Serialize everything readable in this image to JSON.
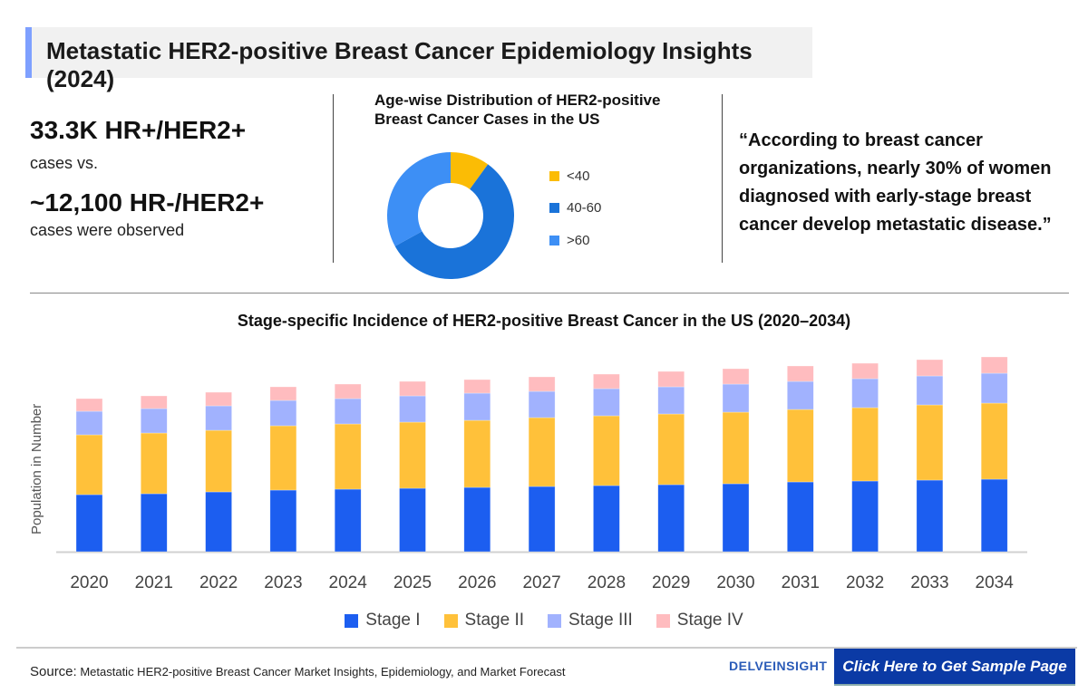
{
  "header": {
    "title": "Metastatic HER2-positive Breast Cancer Epidemiology Insights (2024)"
  },
  "stats": {
    "stat1": "33.3K HR+/HER2+",
    "stat1_sub": "cases vs.",
    "stat2": "~12,100 HR-/HER2+",
    "stat2_sub": "cases were observed"
  },
  "quote": "“According to breast cancer organizations, nearly 30% of women diagnosed with early-stage breast cancer develop metastatic disease.”",
  "footer": {
    "source_label": "Source:",
    "source_text": "Metastatic HER2-positive Breast Cancer Market Insights, Epidemiology, and Market Forecast",
    "logo": "DELVEINSIGHT",
    "cta": "Click Here to Get Sample Page"
  },
  "chart_data": [
    {
      "type": "pie",
      "donut": true,
      "title": "Age-wise Distribution of HER2-positive Breast Cancer Cases in the US",
      "categories": [
        "<40",
        "40-60",
        ">60"
      ],
      "values": [
        10,
        57,
        33
      ],
      "colors": [
        "#fbbc05",
        "#1a73d9",
        "#3d8ff5"
      ],
      "legend": "right"
    },
    {
      "type": "bar",
      "stacked": true,
      "title": "Stage-specific Incidence of HER2-positive Breast Cancer in the US (2020–2034)",
      "xlabel": "",
      "ylabel": "Population in Number",
      "grid": false,
      "legend": "bottom",
      "categories": [
        "2020",
        "2021",
        "2022",
        "2023",
        "2024",
        "2025",
        "2026",
        "2027",
        "2028",
        "2029",
        "2030",
        "2031",
        "2032",
        "2033",
        "2034"
      ],
      "series": [
        {
          "name": "Stage I",
          "color": "#1c5ef0",
          "values": [
            63,
            64,
            66,
            68,
            69,
            70,
            71,
            72,
            73,
            74,
            75,
            77,
            78,
            79,
            80
          ]
        },
        {
          "name": "Stage II",
          "color": "#ffc13a",
          "values": [
            66,
            67,
            68,
            71,
            72,
            73,
            74,
            76,
            77,
            78,
            79,
            80,
            81,
            83,
            84
          ]
        },
        {
          "name": "Stage III",
          "color": "#a1b2fe",
          "values": [
            26,
            27,
            27,
            28,
            28,
            29,
            30,
            29,
            30,
            30,
            31,
            31,
            32,
            32,
            33
          ]
        },
        {
          "name": "Stage IV",
          "color": "#ffbcbf",
          "values": [
            14,
            14,
            15,
            15,
            16,
            16,
            15,
            16,
            16,
            17,
            17,
            17,
            17,
            18,
            18
          ]
        }
      ]
    }
  ]
}
